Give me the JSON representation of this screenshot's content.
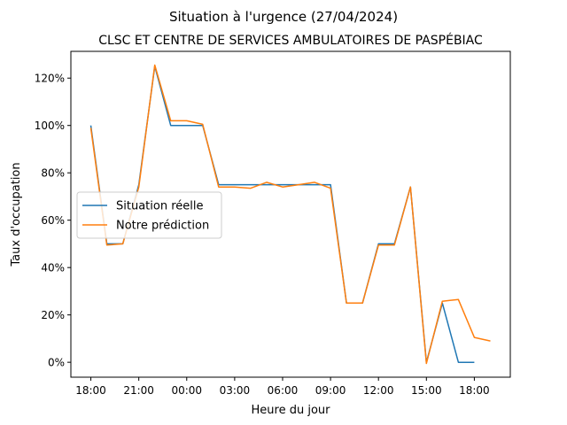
{
  "chart_data": {
    "type": "line",
    "suptitle": "Situation à l'urgence (27/04/2024)",
    "title": "CLSC ET CENTRE DE SERVICES AMBULATOIRES DE PASPÉBIAC",
    "xlabel": "Heure du jour",
    "ylabel": "Taux d'occupation",
    "x_unit": "hours since 18:00 (27/04/2024)",
    "xlim": [
      -1.25,
      26.25
    ],
    "ylim": [
      -6.3,
      131.3
    ],
    "xticks": [
      {
        "x": 0,
        "label": "18:00"
      },
      {
        "x": 3,
        "label": "21:00"
      },
      {
        "x": 6,
        "label": "00:00"
      },
      {
        "x": 9,
        "label": "03:00"
      },
      {
        "x": 12,
        "label": "06:00"
      },
      {
        "x": 15,
        "label": "09:00"
      },
      {
        "x": 18,
        "label": "12:00"
      },
      {
        "x": 21,
        "label": "15:00"
      },
      {
        "x": 24,
        "label": "18:00"
      }
    ],
    "yticks": [
      {
        "y": 0,
        "label": "0%"
      },
      {
        "y": 20,
        "label": "20%"
      },
      {
        "y": 40,
        "label": "40%"
      },
      {
        "y": 60,
        "label": "60%"
      },
      {
        "y": 80,
        "label": "80%"
      },
      {
        "y": 100,
        "label": "100%"
      },
      {
        "y": 120,
        "label": "120%"
      }
    ],
    "grid": false,
    "legend_position": "center-left",
    "series": [
      {
        "name": "Situation réelle",
        "color": "#1f77b4",
        "x": [
          0,
          1,
          2,
          3,
          4,
          5,
          6,
          7,
          8,
          9,
          10,
          11,
          12,
          13,
          14,
          15,
          16,
          17,
          18,
          19,
          20,
          21,
          22,
          23,
          24
        ],
        "values": [
          100,
          50,
          50,
          75,
          125,
          100,
          100,
          100,
          75,
          75,
          75,
          75,
          75,
          75,
          75,
          75,
          25,
          25,
          50,
          50,
          74,
          0,
          25,
          0,
          0
        ]
      },
      {
        "name": "Notre prédiction",
        "color": "#ff7f0e",
        "x": [
          0,
          1,
          2,
          3,
          4,
          5,
          6,
          7,
          8,
          9,
          10,
          11,
          12,
          13,
          14,
          15,
          16,
          17,
          18,
          19,
          20,
          21,
          22,
          23,
          24,
          25
        ],
        "values": [
          99,
          49.5,
          50,
          74,
          125.5,
          102,
          102,
          100.5,
          74,
          74,
          73.5,
          76,
          74,
          75,
          76,
          73.5,
          25,
          25,
          49.5,
          49.5,
          74,
          -0.5,
          25.8,
          26.5,
          10.5,
          9
        ]
      }
    ]
  }
}
